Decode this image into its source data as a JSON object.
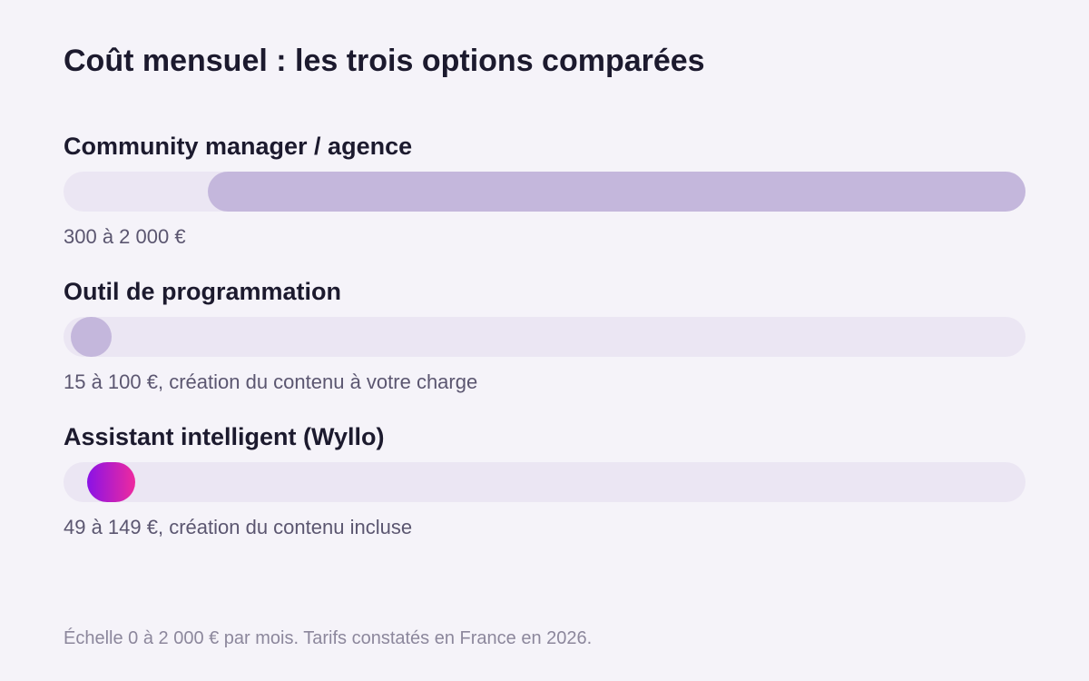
{
  "title": "Coût mensuel : les trois options comparées",
  "footnote": "Échelle 0 à 2 000 € par mois. Tarifs constatés en France en 2026.",
  "colors": {
    "background": "#f5f3f9",
    "track": "#ebe6f3",
    "bar": "#c4b7dc",
    "highlight_start": "#8a12e6",
    "highlight_end": "#ee2a9e"
  },
  "chart_data": {
    "type": "bar",
    "orientation": "horizontal-range",
    "unit": "€ par mois",
    "xlim": [
      0,
      2000
    ],
    "categories": [
      "Community manager / agence",
      "Outil de programmation",
      "Assistant intelligent (Wyllo)"
    ],
    "series": [
      {
        "low": 300,
        "high": 2000,
        "note": "300 à 2 000 €",
        "highlight": false
      },
      {
        "low": 15,
        "high": 100,
        "note": "15 à 100 €, création du contenu à votre charge",
        "highlight": false
      },
      {
        "low": 49,
        "high": 149,
        "note": "49 à 149 €, création du contenu incluse",
        "highlight": true
      }
    ]
  }
}
